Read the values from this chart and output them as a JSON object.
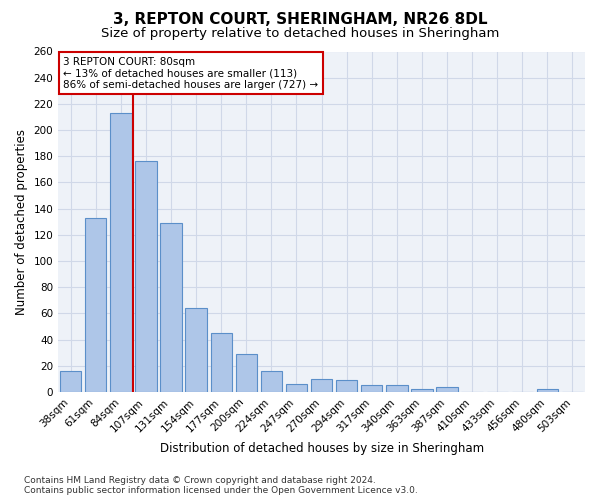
{
  "title1": "3, REPTON COURT, SHERINGHAM, NR26 8DL",
  "title2": "Size of property relative to detached houses in Sheringham",
  "xlabel": "Distribution of detached houses by size in Sheringham",
  "ylabel": "Number of detached properties",
  "categories": [
    "38sqm",
    "61sqm",
    "84sqm",
    "107sqm",
    "131sqm",
    "154sqm",
    "177sqm",
    "200sqm",
    "224sqm",
    "247sqm",
    "270sqm",
    "294sqm",
    "317sqm",
    "340sqm",
    "363sqm",
    "387sqm",
    "410sqm",
    "433sqm",
    "456sqm",
    "480sqm",
    "503sqm"
  ],
  "values": [
    16,
    133,
    213,
    176,
    129,
    64,
    45,
    29,
    16,
    6,
    10,
    9,
    5,
    5,
    2,
    4,
    0,
    0,
    0,
    2,
    0
  ],
  "bar_color": "#aec6e8",
  "bar_edge_color": "#5b8fc9",
  "vline_x": 2.5,
  "vline_color": "#cc0000",
  "annotation_text": "3 REPTON COURT: 80sqm\n← 13% of detached houses are smaller (113)\n86% of semi-detached houses are larger (727) →",
  "annotation_box_color": "#ffffff",
  "annotation_box_edge_color": "#cc0000",
  "annotation_fontsize": 7.5,
  "grid_color": "#d0d8e8",
  "background_color": "#eef2f8",
  "ylim": [
    0,
    260
  ],
  "yticks": [
    0,
    20,
    40,
    60,
    80,
    100,
    120,
    140,
    160,
    180,
    200,
    220,
    240,
    260
  ],
  "footnote": "Contains HM Land Registry data © Crown copyright and database right 2024.\nContains public sector information licensed under the Open Government Licence v3.0.",
  "title1_fontsize": 11,
  "title2_fontsize": 9.5,
  "xlabel_fontsize": 8.5,
  "ylabel_fontsize": 8.5,
  "tick_fontsize": 7.5,
  "footnote_fontsize": 6.5
}
